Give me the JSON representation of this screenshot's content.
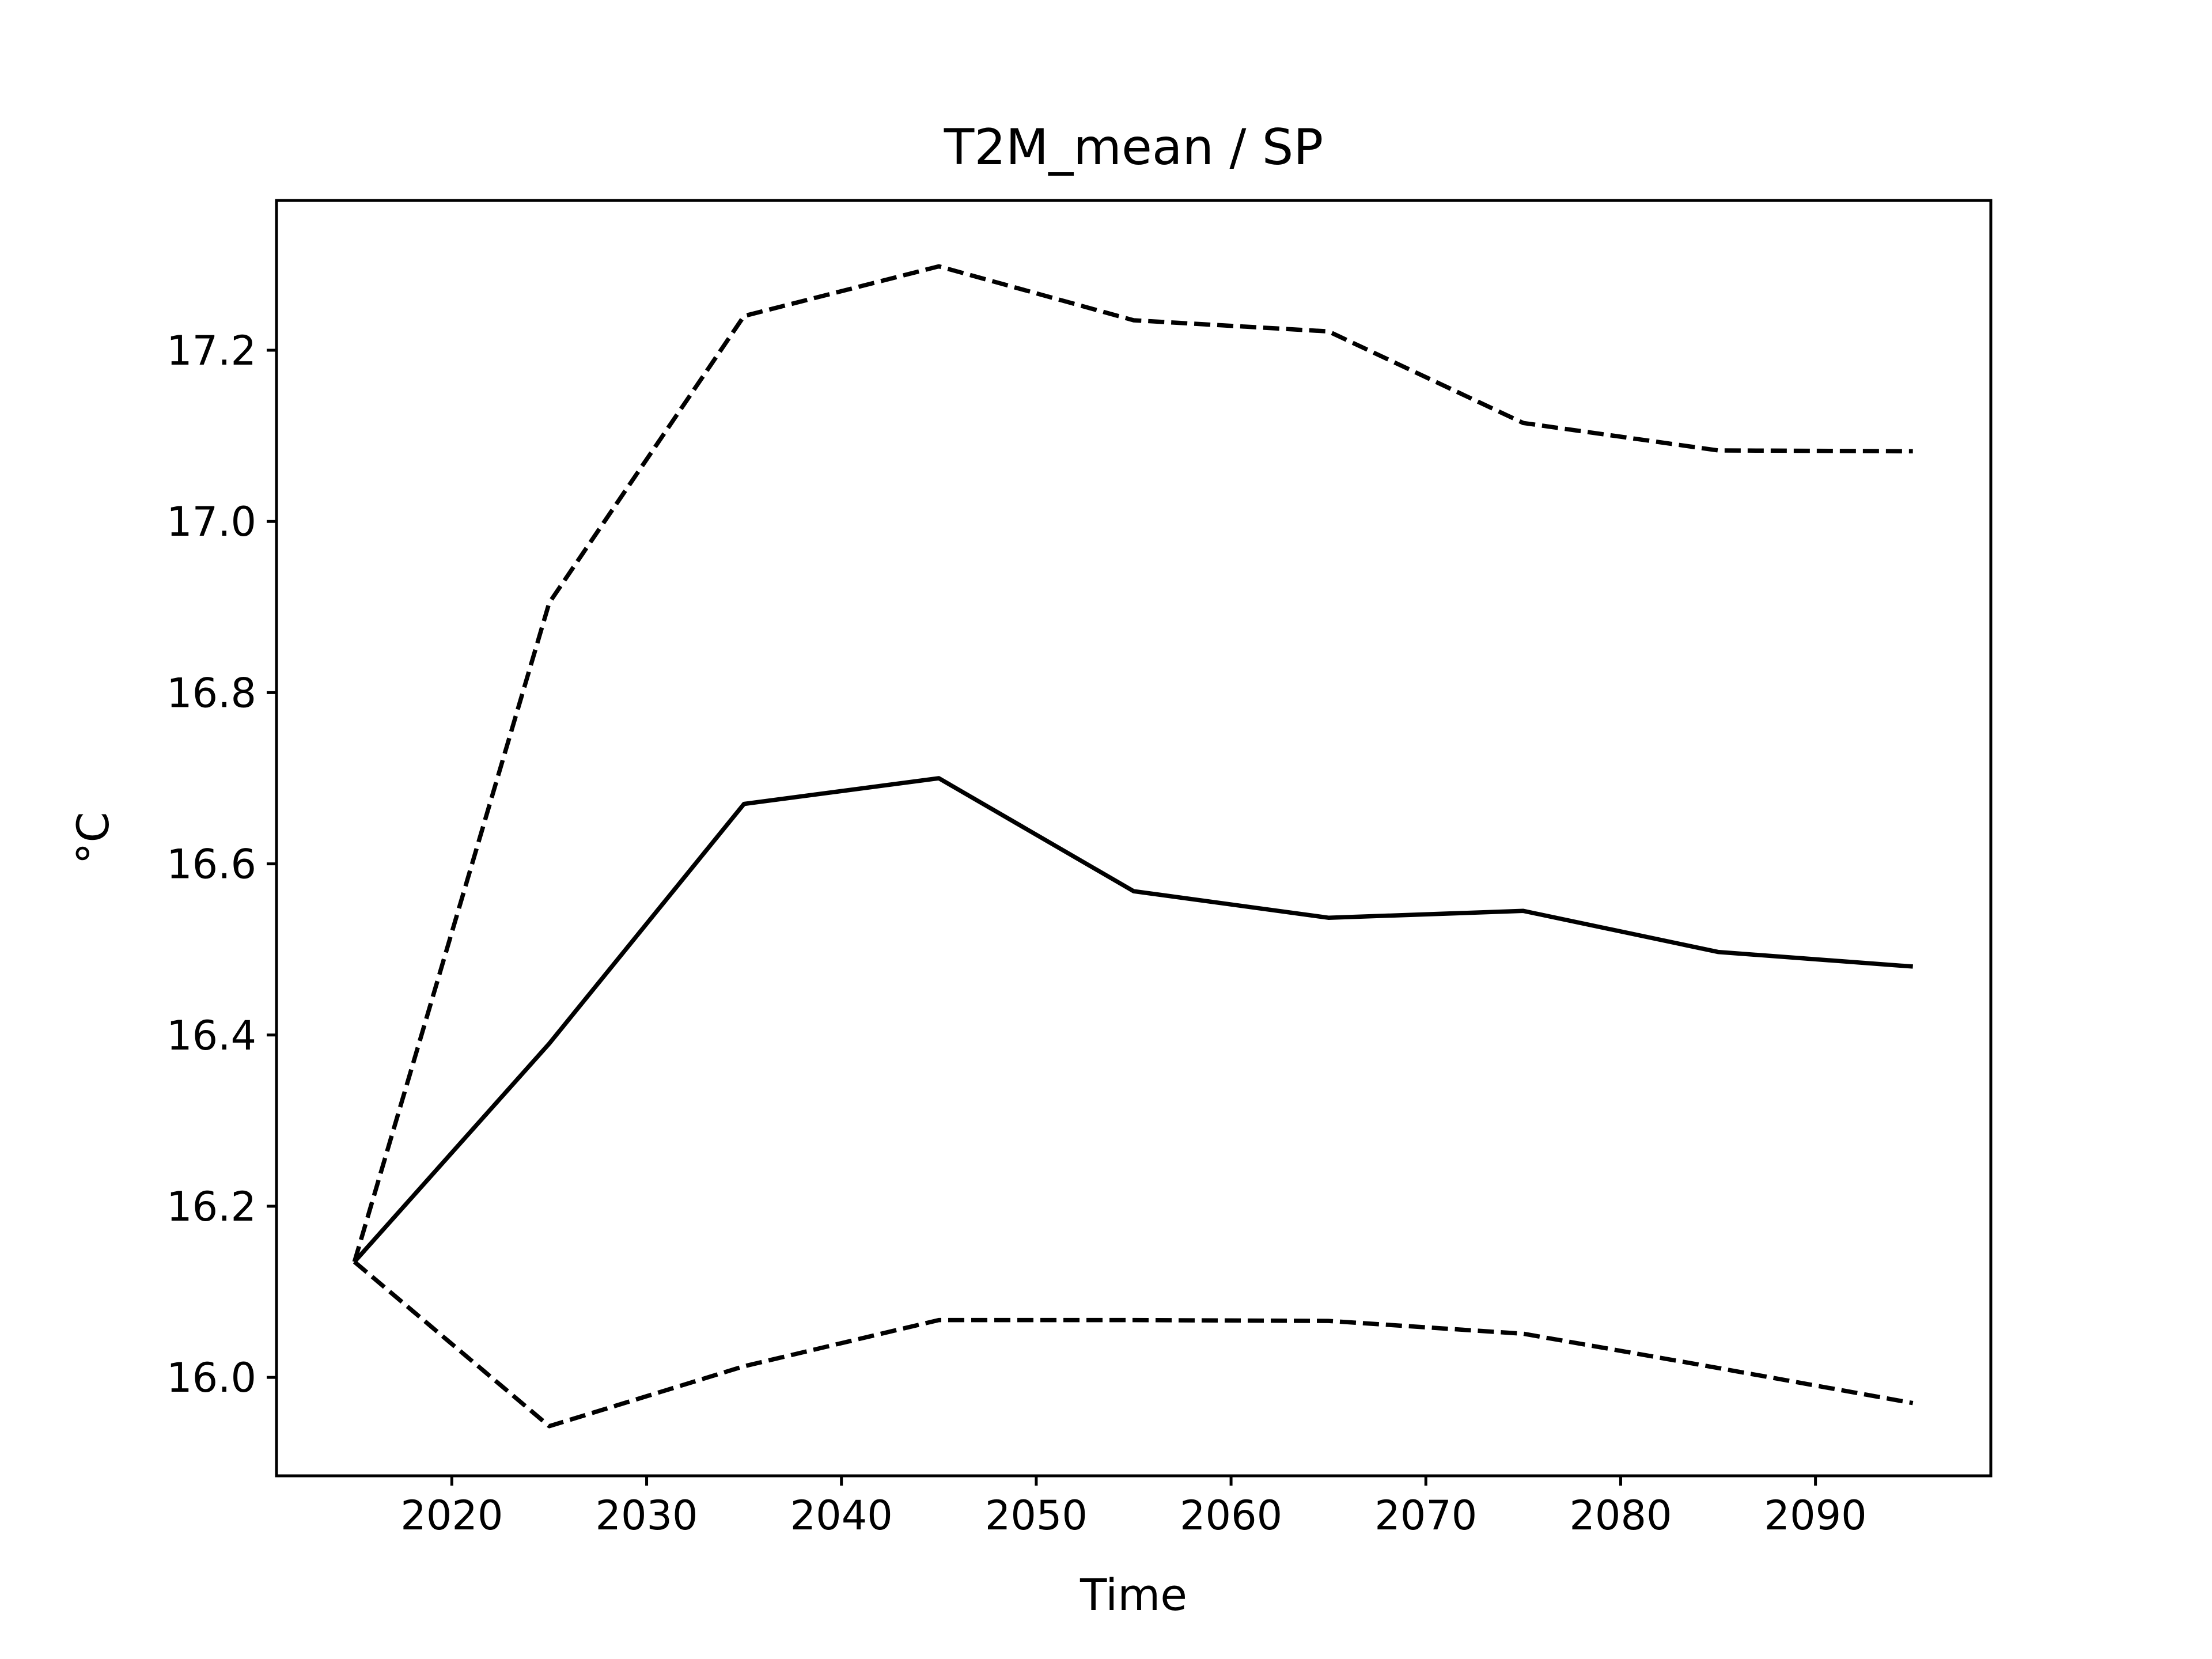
{
  "chart_data": {
    "type": "line",
    "title": "T2M_mean / SP",
    "xlabel": "Time",
    "ylabel": "°C",
    "xlim": [
      2011,
      2099
    ],
    "ylim": [
      15.885,
      17.375
    ],
    "xticks": [
      2020,
      2030,
      2040,
      2050,
      2060,
      2070,
      2080,
      2090
    ],
    "xtick_labels": [
      "2020",
      "2030",
      "2040",
      "2050",
      "2060",
      "2070",
      "2080",
      "2090"
    ],
    "yticks": [
      16.0,
      16.2,
      16.4,
      16.6,
      16.8,
      17.0,
      17.2
    ],
    "ytick_labels": [
      "16.0",
      "16.2",
      "16.4",
      "16.6",
      "16.8",
      "17.0",
      "17.2"
    ],
    "grid": false,
    "x": [
      2015,
      2025,
      2035,
      2045,
      2055,
      2065,
      2075,
      2085,
      2095
    ],
    "series": [
      {
        "style": "solid",
        "color": "#000000",
        "values": [
          16.135,
          16.39,
          16.67,
          16.7,
          16.568,
          16.537,
          16.545,
          16.497,
          16.48
        ]
      },
      {
        "style": "dashed",
        "color": "#000000",
        "values": [
          16.135,
          16.905,
          17.24,
          17.298,
          17.235,
          17.222,
          17.115,
          17.083,
          17.082
        ]
      },
      {
        "style": "dashed",
        "color": "#000000",
        "values": [
          16.135,
          15.943,
          16.013,
          16.067,
          16.067,
          16.066,
          16.051,
          16.011,
          15.97
        ]
      }
    ]
  }
}
